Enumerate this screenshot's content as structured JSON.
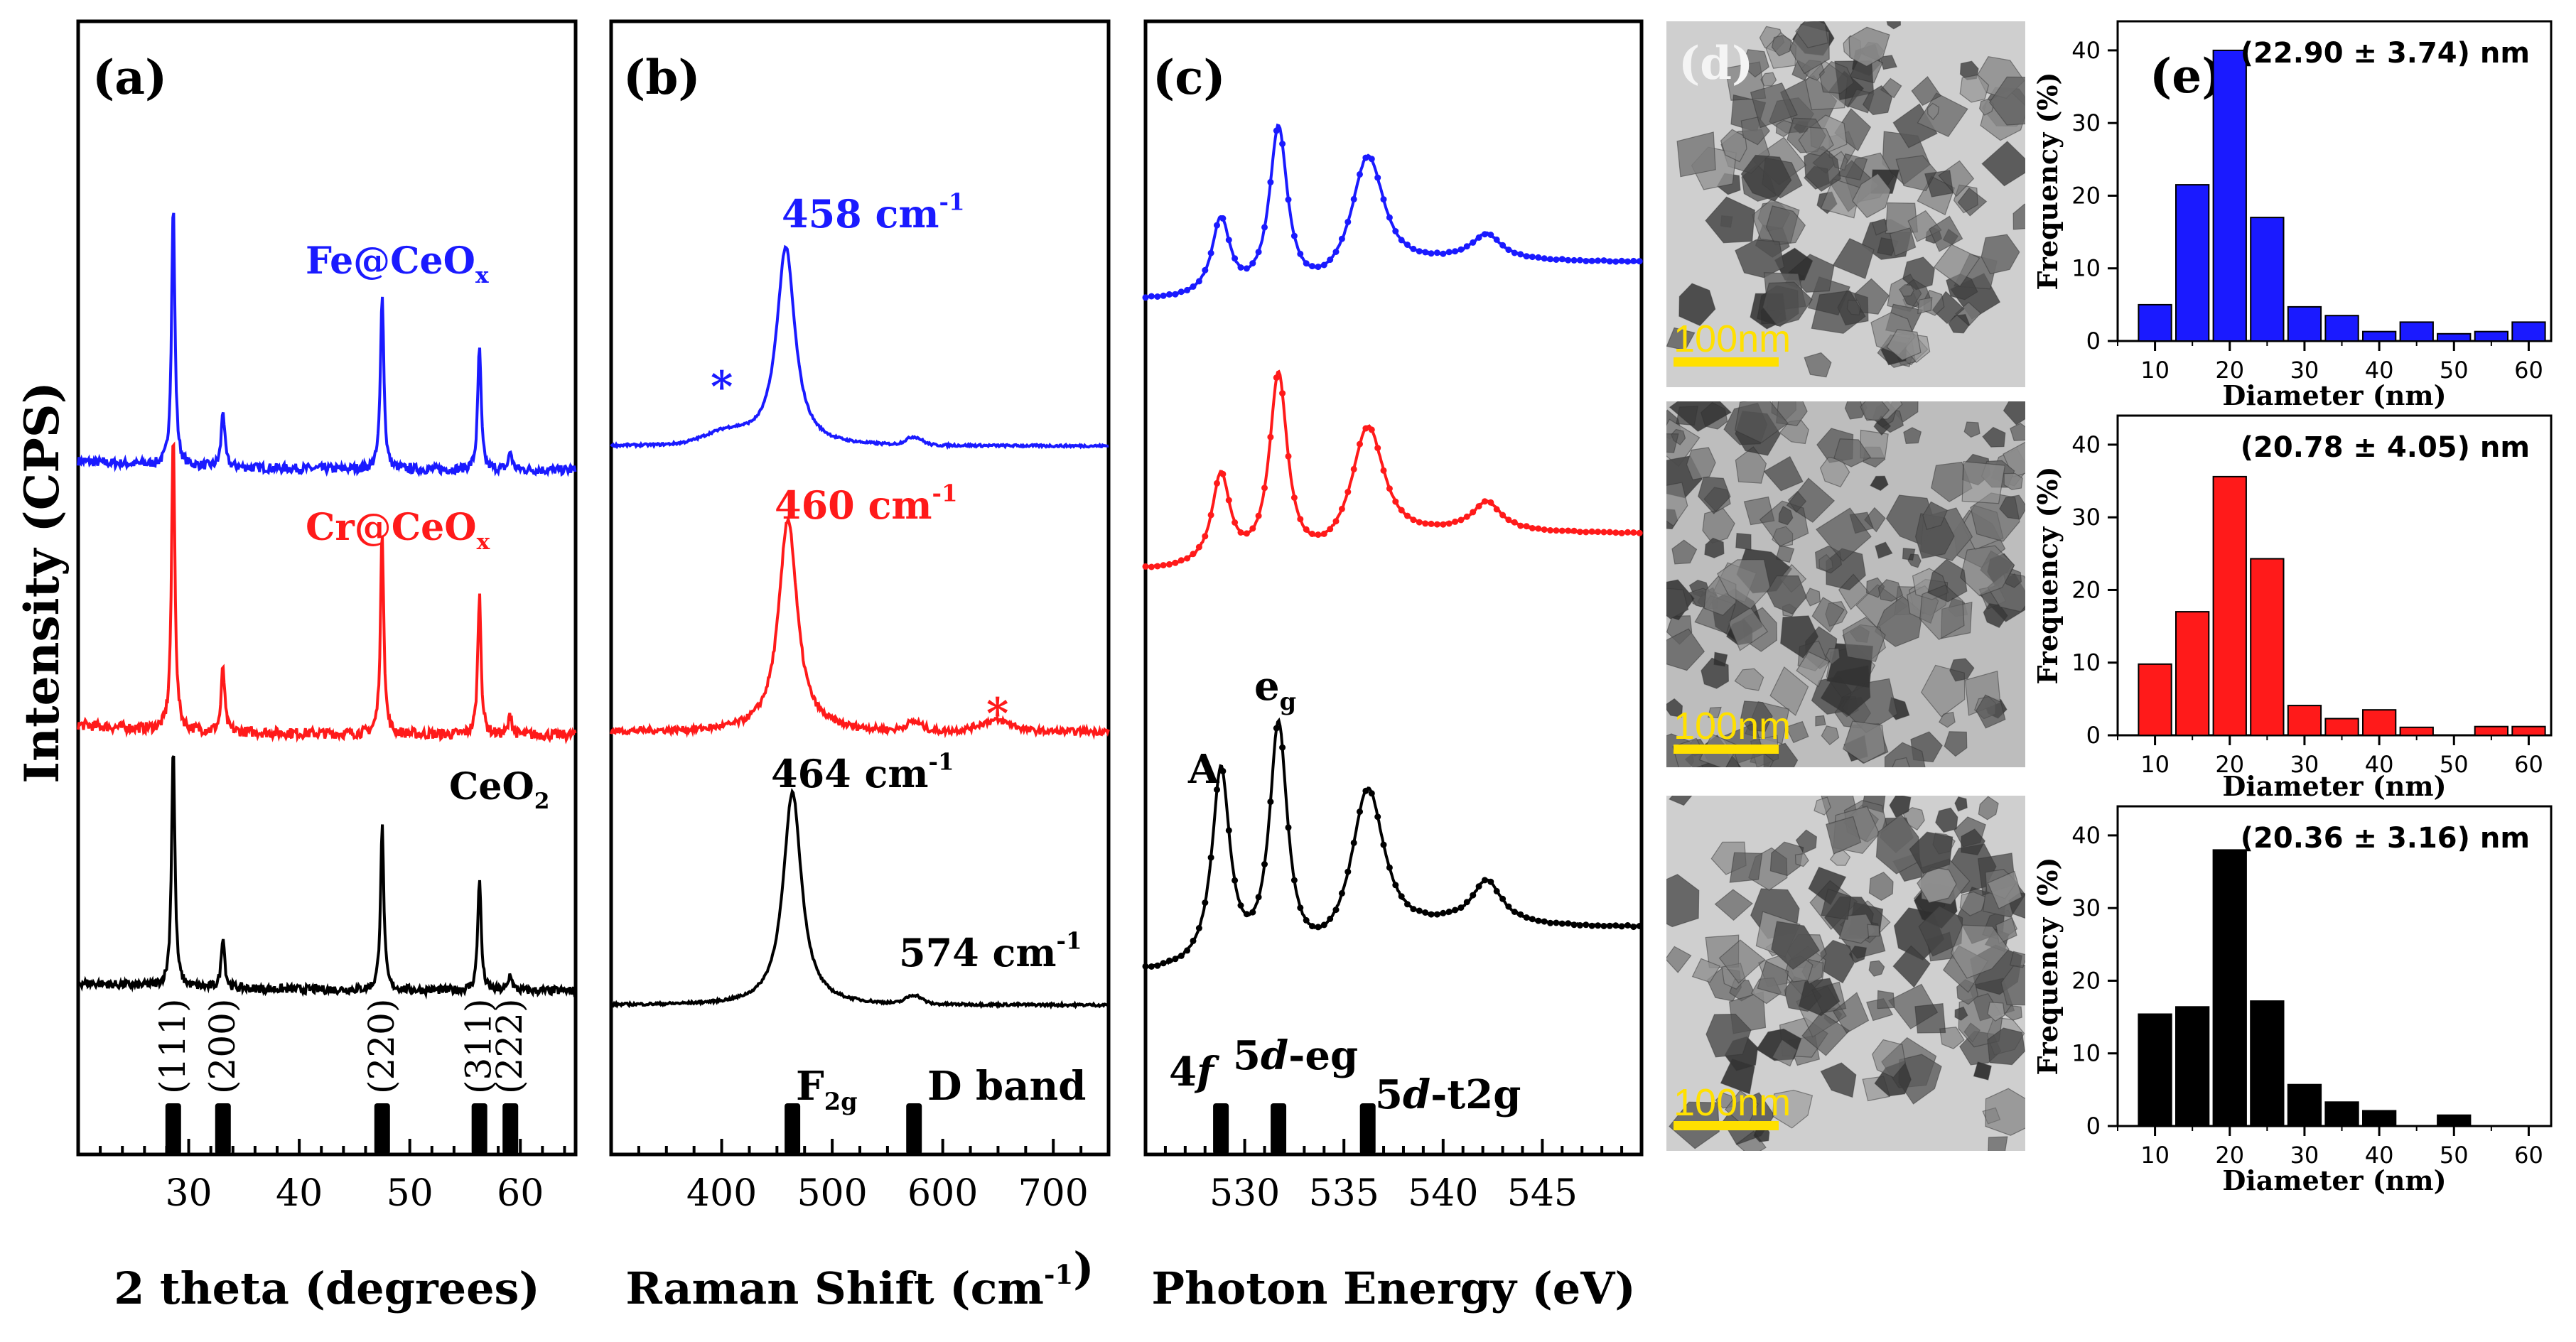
{
  "colors": {
    "fe": "#1a1aff",
    "cr": "#ff1a1a",
    "ce": "#000000",
    "scale": "#ffe000"
  },
  "panel_labels": {
    "a": "(a)",
    "b": "(b)",
    "c": "(c)",
    "d": "(d)",
    "e": "(e)"
  },
  "y_label": "Intensity (CPS)",
  "chart_data": [
    {
      "panel": "a",
      "type": "line",
      "xlabel": "2 theta (degrees)",
      "xlim": [
        20,
        65
      ],
      "xticks": [
        30,
        40,
        50,
        60
      ],
      "series": [
        {
          "name": "Fe@CeOx",
          "color": "fe",
          "peaks": [
            [
              28.6,
              100
            ],
            [
              33.1,
              22
            ],
            [
              47.5,
              68
            ],
            [
              56.3,
              47
            ],
            [
              59.1,
              7
            ]
          ]
        },
        {
          "name": "Cr@CeOx",
          "color": "cr",
          "peaks": [
            [
              28.6,
              100
            ],
            [
              33.1,
              22
            ],
            [
              47.5,
              68
            ],
            [
              56.3,
              47
            ],
            [
              59.1,
              7
            ]
          ]
        },
        {
          "name": "CeO2",
          "color": "ce",
          "peaks": [
            [
              28.6,
              100
            ],
            [
              33.1,
              22
            ],
            [
              47.5,
              68
            ],
            [
              56.3,
              47
            ],
            [
              59.1,
              7
            ]
          ]
        }
      ],
      "series_labels": {
        "fe_main": "Fe@CeO",
        "fe_sub": "x",
        "cr_main": "Cr@CeO",
        "cr_sub": "x",
        "ce_main": "CeO",
        "ce_sub": "2"
      },
      "reference_peaks": [
        {
          "pos": 28.6,
          "label": "(111)"
        },
        {
          "pos": 33.1,
          "label": "(200)"
        },
        {
          "pos": 47.5,
          "label": "(220)"
        },
        {
          "pos": 56.3,
          "label": "(311)"
        },
        {
          "pos": 59.1,
          "label": "(222)"
        }
      ]
    },
    {
      "panel": "b",
      "type": "line",
      "xlabel_main": "Raman Shift (cm",
      "xlabel_sup": "-1",
      "xlabel_end": ")",
      "xlim": [
        300,
        750
      ],
      "xticks": [
        400,
        500,
        600,
        700
      ],
      "series": [
        {
          "name": "Fe@CeOx",
          "color": "fe",
          "peak": 458
        },
        {
          "name": "Cr@CeOx",
          "color": "cr",
          "peak": 460
        },
        {
          "name": "CeO2",
          "color": "ce",
          "peak": 464
        }
      ],
      "annotations": {
        "fe_main": "458 cm",
        "cr_main": "460 cm",
        "ce_main": "464 cm",
        "d_main": "574 cm",
        "sup": "-1",
        "star": "*"
      },
      "reference_bands": [
        {
          "pos": 464,
          "main": "F",
          "sub": "2g"
        },
        {
          "pos": 574,
          "main": "D  band",
          "sub": ""
        }
      ]
    },
    {
      "panel": "c",
      "type": "line",
      "xlabel": "Photon Energy (eV)",
      "xlim": [
        525,
        550
      ],
      "xticks": [
        530,
        535,
        540,
        545
      ],
      "peaks_ev": [
        528.8,
        531.7,
        536.2,
        542.2
      ],
      "annotations": {
        "A": "A",
        "eg_main": "e",
        "eg_sub": "g"
      },
      "reference_bands": [
        {
          "pos": 528.8,
          "pre": "4",
          "ital": "f",
          "post": ""
        },
        {
          "pos": 531.7,
          "pre": "5",
          "ital": "d",
          "post": "-eg"
        },
        {
          "pos": 536.2,
          "pre": "5",
          "ital": "d",
          "post": "-t2g"
        }
      ]
    },
    {
      "panel": "e",
      "type": "bar",
      "xlabel": "Diameter (nm)",
      "ylabel": "Frequency (%)",
      "xlim": [
        5,
        63
      ],
      "ylim": [
        0,
        44
      ],
      "xticks": [
        10,
        20,
        30,
        40,
        50,
        60
      ],
      "yticks": [
        0,
        10,
        20,
        30,
        40
      ],
      "bin_centers": [
        10,
        15,
        20,
        25,
        30,
        35,
        40,
        45,
        50,
        55,
        60
      ],
      "series": [
        {
          "name": "Fe@CeOx",
          "color": "fe",
          "stat": "(22.90 ± 3.74) nm",
          "values": [
            5,
            21.5,
            40,
            17,
            4.7,
            3.5,
            1.3,
            2.6,
            1.0,
            1.3,
            2.6
          ]
        },
        {
          "name": "Cr@CeOx",
          "color": "cr",
          "stat": "(20.78 ± 4.05) nm",
          "values": [
            9.8,
            17,
            35.6,
            24.3,
            4.1,
            2.3,
            3.5,
            1.1,
            0,
            1.2,
            1.2
          ]
        },
        {
          "name": "CeO2",
          "color": "ce",
          "stat": "(20.36 ± 3.16) nm",
          "values": [
            15.4,
            16.4,
            38,
            17.2,
            5.7,
            3.3,
            2.1,
            0,
            1.5,
            0,
            0
          ]
        }
      ]
    }
  ],
  "tem": {
    "scale_label": "100nm"
  }
}
